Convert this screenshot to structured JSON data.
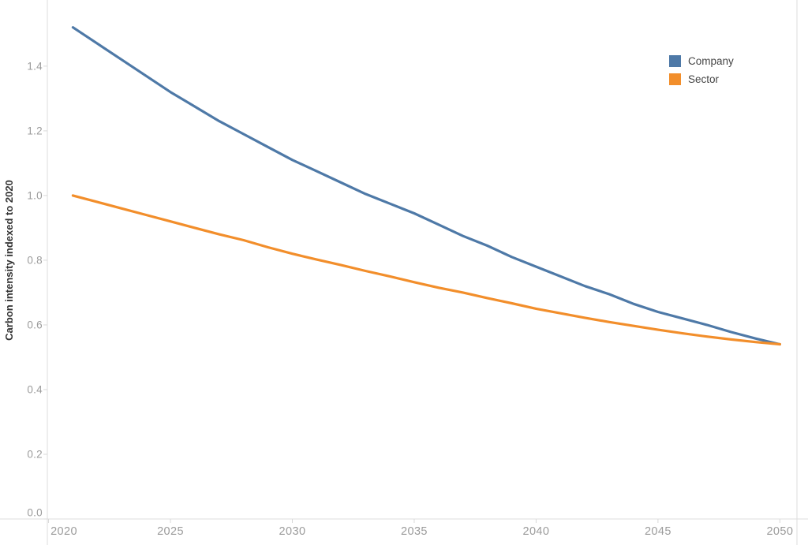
{
  "style": {
    "background": "#ffffff",
    "axis_line_color": "#dcdcdc",
    "tick_color": "#d9d9d9",
    "tick_label_color": "#9b9b9b",
    "axis_title_color": "#333333",
    "legend_text_color": "#454545"
  },
  "legend": {
    "items": [
      {
        "label": "Company",
        "color": "#4e79a7"
      },
      {
        "label": "Sector",
        "color": "#f28e2b"
      }
    ]
  },
  "chart_data": {
    "type": "line",
    "title": "",
    "xlabel": "",
    "ylabel": "Carbon intensity indexed to 2020",
    "x": [
      2021,
      2022,
      2023,
      2024,
      2025,
      2026,
      2027,
      2028,
      2029,
      2030,
      2031,
      2032,
      2033,
      2034,
      2035,
      2036,
      2037,
      2038,
      2039,
      2040,
      2041,
      2042,
      2043,
      2044,
      2045,
      2046,
      2047,
      2048,
      2049,
      2050
    ],
    "series": [
      {
        "name": "Company",
        "color": "#4e79a7",
        "values": [
          1.52,
          1.47,
          1.42,
          1.37,
          1.32,
          1.275,
          1.23,
          1.19,
          1.15,
          1.11,
          1.075,
          1.04,
          1.005,
          0.975,
          0.945,
          0.91,
          0.875,
          0.845,
          0.81,
          0.78,
          0.75,
          0.72,
          0.695,
          0.665,
          0.64,
          0.62,
          0.6,
          0.578,
          0.558,
          0.54
        ]
      },
      {
        "name": "Sector",
        "color": "#f28e2b",
        "values": [
          1.0,
          0.98,
          0.96,
          0.94,
          0.92,
          0.9,
          0.88,
          0.862,
          0.84,
          0.82,
          0.802,
          0.785,
          0.767,
          0.75,
          0.732,
          0.715,
          0.7,
          0.683,
          0.667,
          0.65,
          0.636,
          0.622,
          0.609,
          0.597,
          0.585,
          0.574,
          0.564,
          0.555,
          0.547,
          0.54
        ]
      }
    ],
    "x_ticks": [
      2020,
      2025,
      2030,
      2035,
      2040,
      2045,
      2050
    ],
    "y_ticks": [
      0.0,
      0.2,
      0.4,
      0.6,
      0.8,
      1.0,
      1.2,
      1.4
    ],
    "xlim": [
      2019.95,
      2050.7
    ],
    "ylim": [
      0,
      1.6045
    ],
    "grid": false,
    "legend_position": "top-right"
  }
}
